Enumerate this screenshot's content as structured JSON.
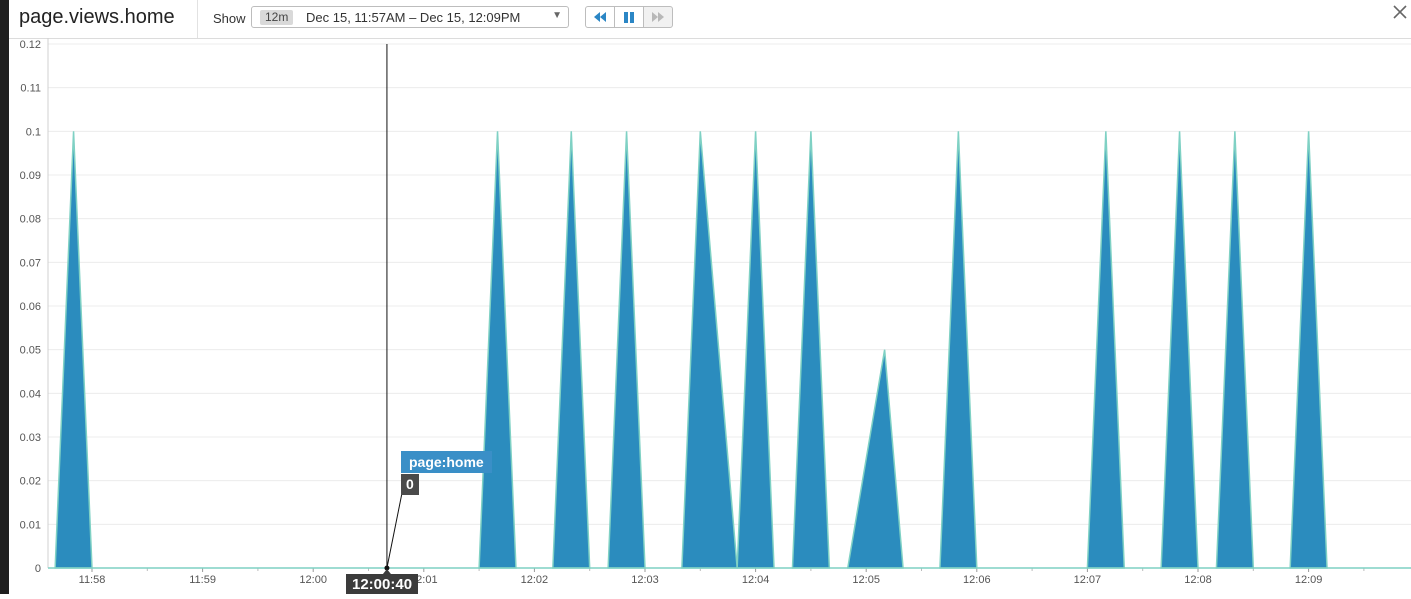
{
  "header": {
    "title": "page.views.home",
    "show_label": "Show",
    "range_badge": "12m",
    "range_text": "Dec 15, 11:57AM – Dec 15, 12:09PM",
    "buttons": [
      "rewind-icon",
      "pause-icon",
      "fast-forward-icon"
    ],
    "close_icon": "close-icon"
  },
  "tooltip": {
    "series": "page:home",
    "value": "0",
    "time": "12:00:40"
  },
  "colors": {
    "fill": "#2b8cbe",
    "stroke": "#7fd1c4",
    "accent": "#3a8fc7"
  },
  "chart_data": {
    "type": "area",
    "ylim": [
      0,
      0.12
    ],
    "y_ticks": [
      "0",
      "0.01",
      "0.02",
      "0.03",
      "0.04",
      "0.05",
      "0.06",
      "0.07",
      "0.08",
      "0.09",
      "0.1",
      "0.11",
      "0.12"
    ],
    "x_ticks": [
      "11:58",
      "11:59",
      "12:00",
      "12:01",
      "12:02",
      "12:03",
      "12:04",
      "12:05",
      "12:06",
      "12:07",
      "12:08",
      "12:09"
    ],
    "grid": true,
    "series": [
      {
        "name": "page:home",
        "peaks": [
          {
            "start": "11:57:40",
            "peak": "11:57:50",
            "end": "11:58:00",
            "value": 0.1
          },
          {
            "start": "12:01:30",
            "peak": "12:01:40",
            "end": "12:01:50",
            "value": 0.1
          },
          {
            "start": "12:02:10",
            "peak": "12:02:20",
            "end": "12:02:30",
            "value": 0.1
          },
          {
            "start": "12:02:40",
            "peak": "12:02:50",
            "end": "12:03:00",
            "value": 0.1
          },
          {
            "start": "12:03:20",
            "peak": "12:03:30",
            "end": "12:03:50",
            "value": 0.1
          },
          {
            "start": "12:03:50",
            "peak": "12:04:00",
            "end": "12:04:10",
            "value": 0.1
          },
          {
            "start": "12:04:20",
            "peak": "12:04:30",
            "end": "12:04:40",
            "value": 0.1
          },
          {
            "start": "12:04:50",
            "peak": "12:05:10",
            "end": "12:05:20",
            "value": 0.05
          },
          {
            "start": "12:05:40",
            "peak": "12:05:50",
            "end": "12:06:00",
            "value": 0.1
          },
          {
            "start": "12:07:00",
            "peak": "12:07:10",
            "end": "12:07:20",
            "value": 0.1
          },
          {
            "start": "12:07:40",
            "peak": "12:07:50",
            "end": "12:08:00",
            "value": 0.1
          },
          {
            "start": "12:08:10",
            "peak": "12:08:20",
            "end": "12:08:30",
            "value": 0.1
          },
          {
            "start": "12:08:50",
            "peak": "12:09:00",
            "end": "12:09:10",
            "value": 0.1
          }
        ]
      }
    ],
    "cursor": {
      "time": "12:00:40",
      "value": 0
    }
  }
}
